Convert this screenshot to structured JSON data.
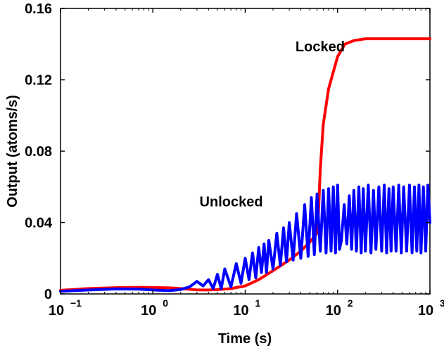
{
  "chart_data": {
    "type": "line",
    "xlabel": "Time  (s)",
    "ylabel": "Output  (atoms/s)",
    "xscale": "log",
    "xlim": [
      0.1,
      1000
    ],
    "ylim": [
      0,
      0.16
    ],
    "grid": false,
    "legend": "none",
    "x_ticks": [
      {
        "base": "10",
        "exp": "−1",
        "value": 0.1
      },
      {
        "base": "10",
        "exp": "0",
        "value": 1
      },
      {
        "base": "10",
        "exp": "1",
        "value": 10
      },
      {
        "base": "10",
        "exp": "2",
        "value": 100
      },
      {
        "base": "10",
        "exp": "3",
        "value": 1000
      }
    ],
    "y_ticks": [
      {
        "label": "0",
        "value": 0
      },
      {
        "label": "0.04",
        "value": 0.04
      },
      {
        "label": "0.08",
        "value": 0.08
      },
      {
        "label": "0.12",
        "value": 0.12
      },
      {
        "label": "0.16",
        "value": 0.16
      }
    ],
    "annotations": [
      {
        "text": "Locked",
        "x": 35,
        "y": 0.136
      },
      {
        "text": "Unlocked",
        "x": 3.2,
        "y": 0.049
      }
    ],
    "series": [
      {
        "color": "#ff0000",
        "x": [
          0.1,
          0.2,
          0.4,
          0.7,
          1.0,
          1.5,
          2.0,
          2.5,
          3.0,
          4.0,
          5.0,
          7.0,
          10,
          14,
          20,
          30,
          40,
          50,
          60,
          62,
          65,
          70,
          80,
          100,
          120,
          150,
          200,
          300,
          500,
          1000
        ],
        "y": [
          0.002,
          0.003,
          0.0035,
          0.0037,
          0.0036,
          0.0034,
          0.003,
          0.0026,
          0.0023,
          0.0022,
          0.0024,
          0.003,
          0.0045,
          0.008,
          0.013,
          0.019,
          0.024,
          0.029,
          0.034,
          0.045,
          0.07,
          0.095,
          0.115,
          0.133,
          0.14,
          0.142,
          0.143,
          0.143,
          0.143,
          0.143
        ]
      },
      {
        "color": "#0000ff",
        "x": [
          0.1,
          0.2,
          0.4,
          0.7,
          1.0,
          1.5,
          2.0,
          2.5,
          3.0,
          3.5,
          4.0,
          4.5,
          5.0,
          5.5,
          6.0,
          7.0,
          8.0,
          9.0,
          10.0,
          11.0,
          12.0,
          13.0,
          14.0,
          15.0,
          16.0,
          17.0,
          18.0,
          20.0,
          22.0,
          24.0,
          26.0,
          28.0,
          30.0,
          33.0,
          36.0,
          40.0,
          44.0,
          48.0,
          52.0,
          56.0,
          60.0,
          65.0,
          70.0,
          75.0,
          80.0,
          85.0,
          90.0,
          95.0,
          100.0,
          105.0,
          110.0,
          118.0,
          126.0,
          134.0,
          142.0,
          150.0,
          160.0,
          170.0,
          180.0,
          190.0,
          200.0,
          215.0,
          230.0,
          245.0,
          260.0,
          280.0,
          300.0,
          320.0,
          340.0,
          360.0,
          380.0,
          400.0,
          430.0,
          460.0,
          490.0,
          520.0,
          560.0,
          600.0,
          640.0,
          680.0,
          720.0,
          760.0,
          800.0,
          850.0,
          900.0,
          950.0,
          1000.0
        ],
        "y": [
          0.0015,
          0.0022,
          0.0028,
          0.0027,
          0.0022,
          0.0018,
          0.0025,
          0.004,
          0.007,
          0.0045,
          0.008,
          0.003,
          0.011,
          0.003,
          0.014,
          0.004,
          0.017,
          0.006,
          0.02,
          0.008,
          0.023,
          0.009,
          0.026,
          0.012,
          0.028,
          0.012,
          0.03,
          0.014,
          0.034,
          0.016,
          0.037,
          0.018,
          0.04,
          0.019,
          0.045,
          0.02,
          0.05,
          0.021,
          0.054,
          0.022,
          0.056,
          0.024,
          0.058,
          0.023,
          0.059,
          0.024,
          0.06,
          0.023,
          0.061,
          0.025,
          0.03,
          0.05,
          0.028,
          0.055,
          0.025,
          0.058,
          0.024,
          0.06,
          0.023,
          0.059,
          0.024,
          0.061,
          0.023,
          0.058,
          0.025,
          0.06,
          0.024,
          0.061,
          0.023,
          0.059,
          0.024,
          0.06,
          0.024,
          0.061,
          0.023,
          0.06,
          0.024,
          0.061,
          0.023,
          0.06,
          0.024,
          0.061,
          0.023,
          0.06,
          0.024,
          0.061,
          0.04
        ]
      }
    ]
  }
}
